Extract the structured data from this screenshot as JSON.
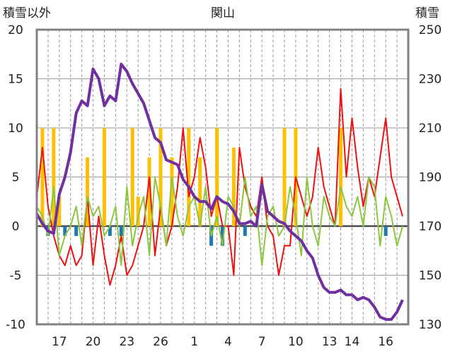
{
  "chart_data": {
    "type": "line",
    "title": "関山",
    "left_axis": {
      "label": "積雪以外",
      "ticks": [
        -10,
        -5,
        0,
        5,
        10,
        15,
        20
      ],
      "ylim": [
        -10,
        20
      ]
    },
    "right_axis": {
      "label": "積雪",
      "ticks": [
        130,
        150,
        170,
        190,
        210,
        230,
        250
      ],
      "ylim": [
        130,
        250
      ]
    },
    "x_tick_labels": [
      "17",
      "20",
      "23",
      "26",
      "1",
      "4",
      "7",
      "10",
      "13",
      "14",
      "16"
    ],
    "x_tick_positions": [
      2,
      5,
      8,
      11,
      14,
      17,
      20,
      23,
      26,
      28,
      31
    ],
    "xlim": [
      0,
      33
    ],
    "grid": "horizontal solid, vertical dashed (daily)",
    "colors": {
      "red_series": "#ee1111",
      "green_series": "#8cc63f",
      "purple_series": "#7030a0",
      "yellow_bars": "#ffc000",
      "blue_bars": "#1f77b4",
      "frame": "#808080"
    },
    "series": [
      {
        "axis": "left",
        "color": "#ee1111",
        "x": [
          0,
          0.5,
          1,
          1.5,
          2,
          2.5,
          3,
          3.5,
          4,
          4.5,
          5,
          5.5,
          6,
          6.5,
          7,
          7.5,
          8,
          8.5,
          9,
          9.5,
          10,
          10.5,
          11,
          11.5,
          12,
          12.5,
          13,
          13.5,
          14,
          14.5,
          15,
          15.5,
          16,
          16.5,
          17,
          17.5,
          18,
          18.5,
          19,
          19.5,
          20,
          20.5,
          21,
          21.5,
          22,
          22.5,
          23,
          23.5,
          24,
          24.5,
          25,
          25.5,
          26,
          26.5,
          27,
          27.5,
          28,
          28.5,
          29,
          29.5,
          30,
          30.5,
          31,
          31.5,
          32,
          32.5
        ],
        "values": [
          3,
          8,
          2,
          -1,
          -3,
          -4,
          -2,
          -4,
          -3,
          3,
          -4,
          1,
          -3,
          -6,
          -4,
          -1,
          -5,
          -4,
          -2,
          0,
          5,
          -3,
          2,
          -2,
          0,
          4,
          10,
          3,
          5,
          9,
          6,
          1,
          3,
          0,
          0,
          -5,
          8,
          4,
          2,
          1,
          5,
          0,
          -1,
          -5,
          -2,
          -2,
          5,
          3,
          1,
          3,
          8,
          4,
          2,
          0,
          14,
          5,
          11,
          6,
          2,
          5,
          3,
          7,
          11,
          5,
          3,
          1
        ]
      },
      {
        "axis": "left",
        "color": "#8cc63f",
        "x": [
          0,
          0.5,
          1,
          1.5,
          2,
          2.5,
          3,
          3.5,
          4,
          4.5,
          5,
          5.5,
          6,
          6.5,
          7,
          7.5,
          8,
          8.5,
          9,
          9.5,
          10,
          10.5,
          11,
          11.5,
          12,
          12.5,
          13,
          13.5,
          14,
          14.5,
          15,
          15.5,
          16,
          16.5,
          17,
          17.5,
          18,
          18.5,
          19,
          19.5,
          20,
          20.5,
          21,
          21.5,
          22,
          22.5,
          23,
          23.5,
          24,
          24.5,
          25,
          25.5,
          26,
          26.5,
          27,
          27.5,
          28,
          28.5,
          29,
          29.5,
          30,
          30.5,
          31,
          31.5,
          32,
          32.5
        ],
        "values": [
          2,
          1,
          -1,
          4,
          -3,
          -1,
          0,
          2,
          -2,
          3,
          1,
          2,
          -1,
          0,
          2,
          -4,
          4,
          -2,
          1,
          3,
          -3,
          5,
          2,
          -2,
          5,
          1,
          -1,
          2,
          3,
          0,
          4,
          -1,
          1,
          -2,
          3,
          2,
          0,
          5,
          1,
          2,
          -4,
          1,
          2,
          -1,
          0,
          4,
          1,
          -3,
          5,
          0,
          -2,
          3,
          1,
          0,
          4,
          2,
          1,
          3,
          0,
          5,
          4,
          -2,
          3,
          1,
          -2,
          0
        ]
      },
      {
        "axis": "right",
        "color": "#7030a0",
        "x": [
          0,
          0.5,
          1,
          1.5,
          2,
          2.5,
          3,
          3.5,
          4,
          4.5,
          5,
          5.5,
          6,
          6.5,
          7,
          7.5,
          8,
          8.5,
          9,
          9.5,
          10,
          10.5,
          11,
          11.5,
          12,
          12.5,
          13,
          13.5,
          14,
          14.5,
          15,
          15.5,
          16,
          16.5,
          17,
          17.5,
          18,
          18.5,
          19,
          19.5,
          20,
          20.5,
          21,
          21.5,
          22,
          22.5,
          23,
          23.5,
          24,
          24.5,
          25,
          25.5,
          26,
          26.5,
          27,
          27.5,
          28,
          28.5,
          29,
          29.5,
          30,
          30.5,
          31,
          31.5,
          32,
          32.5
        ],
        "values": [
          175,
          171,
          168,
          167,
          183,
          190,
          200,
          216,
          221,
          219,
          234,
          230,
          219,
          223,
          221,
          236,
          233,
          228,
          224,
          220,
          213,
          206,
          204,
          197,
          196,
          195,
          189,
          186,
          182,
          180,
          180,
          177,
          182,
          180,
          179,
          176,
          171,
          171,
          172,
          170,
          187,
          176,
          174,
          172,
          171,
          168,
          166,
          164,
          160,
          157,
          150,
          145,
          143,
          143,
          144,
          142,
          142,
          140,
          141,
          140,
          137,
          133,
          132,
          132,
          135,
          140
        ]
      },
      {
        "axis": "left",
        "type": "bar",
        "color": "#ffc000",
        "x": [
          0.5,
          1.5,
          2,
          4.5,
          6,
          8.5,
          9,
          10,
          11,
          12,
          13.5,
          14.5,
          16,
          17.5,
          22,
          23,
          27
        ],
        "values": [
          10,
          10,
          3,
          7,
          10,
          10,
          3,
          7,
          10,
          7,
          10,
          7,
          10,
          8,
          10,
          10,
          10
        ]
      },
      {
        "axis": "left",
        "type": "bar",
        "color": "#1f77b4",
        "x": [
          1,
          2.5,
          3.5,
          6.5,
          7.5,
          15.5,
          16.5,
          18.5,
          31
        ],
        "values": [
          -1,
          -1,
          -1,
          -1,
          -1,
          -2,
          -2,
          -1,
          -1
        ]
      }
    ]
  }
}
